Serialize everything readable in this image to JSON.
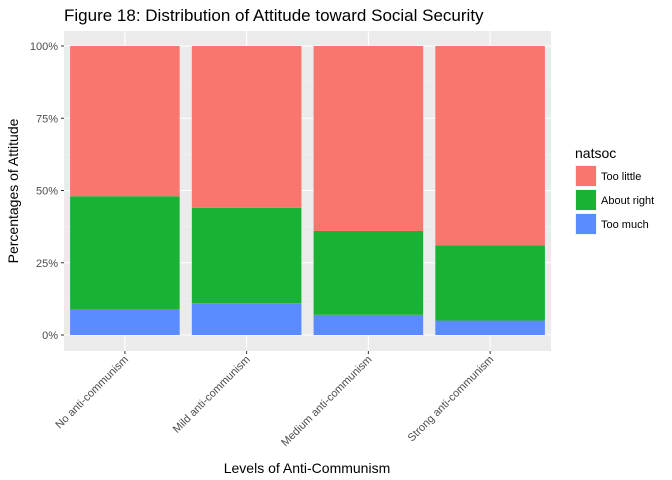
{
  "chart_data": {
    "type": "bar",
    "stacked": true,
    "title": "Figure 18: Distribution of Attitude toward Social Security",
    "xlabel": "Levels of Anti-Communism",
    "ylabel": "Percentages of Attitude",
    "categories": [
      "No anti-communism",
      "Mild anti-communism",
      "Medium anti-communism",
      "Strong anti-communism"
    ],
    "y_ticks": [
      "0%",
      "25%",
      "50%",
      "75%",
      "100%"
    ],
    "ylim": [
      0,
      100
    ],
    "grid": true,
    "legend_title": "natsoc",
    "legend_position": "right",
    "series": [
      {
        "name": "Too little",
        "color": "#F8766D",
        "values": [
          52,
          56,
          64,
          69
        ]
      },
      {
        "name": "About right",
        "color": "#1AB234",
        "values": [
          39,
          33,
          29,
          26
        ]
      },
      {
        "name": "Too much",
        "color": "#5A8CFF",
        "values": [
          9,
          11,
          7,
          5
        ]
      }
    ]
  }
}
